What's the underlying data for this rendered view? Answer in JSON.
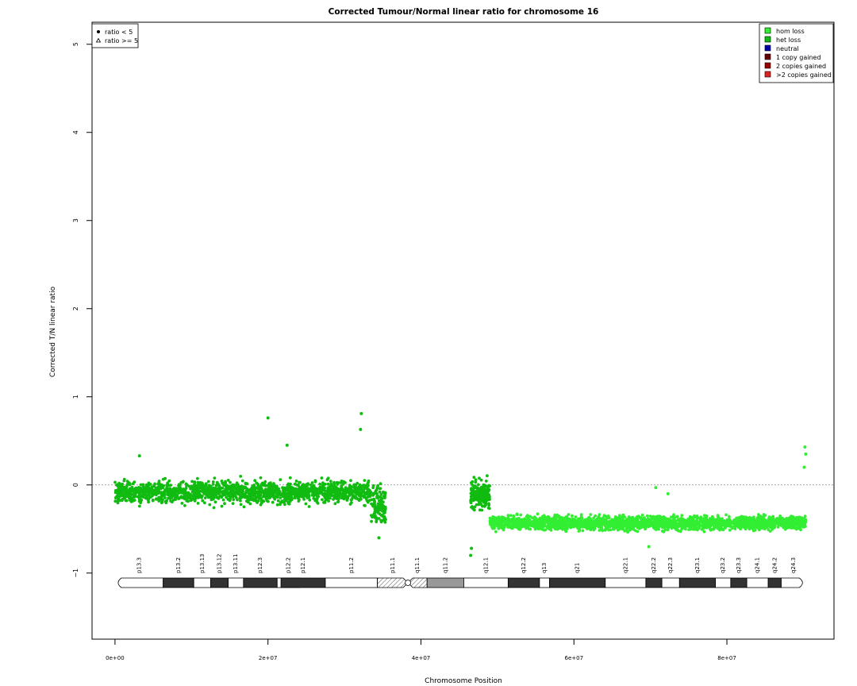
{
  "chart_data": {
    "type": "scatter",
    "title": "Corrected Tumour/Normal linear ratio for chromosome  16",
    "xlabel": "Chromosome Position",
    "ylabel": "Corrected T/N linear ratio",
    "xlim": [
      -3000000,
      94000000
    ],
    "ylim": [
      -1.75,
      5.25
    ],
    "x_ticks": [
      0,
      20000000,
      40000000,
      60000000,
      80000000
    ],
    "x_tick_labels": [
      "0e+00",
      "2e+07",
      "4e+07",
      "6e+07",
      "8e+07"
    ],
    "y_ticks": [
      -1,
      0,
      1,
      2,
      3,
      4,
      5
    ],
    "y_tick_labels": [
      "−1",
      "0",
      "1",
      "2",
      "3",
      "4",
      "5"
    ],
    "reference_line": {
      "y": 0,
      "style": "dotted",
      "color": "#888888"
    },
    "grid": false,
    "shape_legend": {
      "position": "top-left",
      "items": [
        {
          "symbol": "filled-circle",
          "label": "ratio < 5"
        },
        {
          "symbol": "open-triangle",
          "label": "ratio >= 5"
        }
      ]
    },
    "color_legend": {
      "position": "top-right",
      "items": [
        {
          "label": "hom loss",
          "color": "#33ee33"
        },
        {
          "label": "het loss",
          "color": "#11bb11"
        },
        {
          "label": "neutral",
          "color": "#0000aa"
        },
        {
          "label": "1 copy gained",
          "color": "#660000"
        },
        {
          "label": "2 copies gained",
          "color": "#990000"
        },
        {
          "label": ">2 copies gained",
          "color": "#dd2222"
        }
      ]
    },
    "segments": [
      {
        "x_start": 0,
        "x_end": 33500000,
        "mean": -0.08,
        "sd": 0.11,
        "color": "#11bb11",
        "n": 1650
      },
      {
        "x_start": 33500000,
        "x_end": 35400000,
        "mean": -0.22,
        "sd": 0.2,
        "color": "#11bb11",
        "n": 120
      },
      {
        "x_start": 46500000,
        "x_end": 49000000,
        "mean": -0.1,
        "sd": 0.15,
        "color": "#11bb11",
        "n": 200
      },
      {
        "x_start": 49000000,
        "x_end": 90300000,
        "mean": -0.43,
        "sd": 0.07,
        "color": "#33ee33",
        "n": 2600
      }
    ],
    "notable_points": [
      {
        "x": 20000000,
        "y": 0.76,
        "color": "#11bb11"
      },
      {
        "x": 32200000,
        "y": 0.81,
        "color": "#11bb11"
      },
      {
        "x": 32100000,
        "y": 0.63,
        "color": "#11bb11"
      },
      {
        "x": 22500000,
        "y": 0.45,
        "color": "#11bb11"
      },
      {
        "x": 3200000,
        "y": 0.33,
        "color": "#11bb11"
      },
      {
        "x": 34500000,
        "y": -0.6,
        "color": "#11bb11"
      },
      {
        "x": 46500000,
        "y": -0.8,
        "color": "#11bb11"
      },
      {
        "x": 46600000,
        "y": -0.72,
        "color": "#11bb11"
      },
      {
        "x": 90200000,
        "y": 0.43,
        "color": "#33ee33"
      },
      {
        "x": 90300000,
        "y": 0.35,
        "color": "#33ee33"
      },
      {
        "x": 90100000,
        "y": 0.2,
        "color": "#33ee33"
      },
      {
        "x": 70700000,
        "y": -0.03,
        "color": "#33ee33"
      },
      {
        "x": 72300000,
        "y": -0.1,
        "color": "#33ee33"
      },
      {
        "x": 69800000,
        "y": -0.7,
        "color": "#33ee33"
      }
    ],
    "ideogram": {
      "chromosome": "16",
      "centromere": 38300000,
      "end": 90300000,
      "bands": [
        {
          "name": "p13.3",
          "start": 0,
          "end": 6300000,
          "stain": "gneg"
        },
        {
          "name": "p13.2",
          "start": 6300000,
          "end": 10300000,
          "stain": "gpos50"
        },
        {
          "name": "p13.13",
          "start": 10300000,
          "end": 12500000,
          "stain": "gneg"
        },
        {
          "name": "p13.12",
          "start": 12500000,
          "end": 14800000,
          "stain": "gpos50"
        },
        {
          "name": "p13.11",
          "start": 14800000,
          "end": 16800000,
          "stain": "gneg"
        },
        {
          "name": "p12.3",
          "start": 16800000,
          "end": 21200000,
          "stain": "gpos50"
        },
        {
          "name": "p12.2",
          "start": 21200000,
          "end": 24200000,
          "stain": "gneg"
        },
        {
          "name": "p12.1",
          "start": 21700000,
          "end": 27500000,
          "stain": "gpos50"
        },
        {
          "name": "p11.2",
          "start": 27500000,
          "end": 34300000,
          "stain": "gneg"
        },
        {
          "name": "p11.1",
          "start": 34300000,
          "end": 38300000,
          "stain": "acen"
        },
        {
          "name": "q11.1",
          "start": 38300000,
          "end": 40800000,
          "stain": "acen"
        },
        {
          "name": "q11.2",
          "start": 40800000,
          "end": 45600000,
          "stain": "gvar"
        },
        {
          "name": "q12.1",
          "start": 45600000,
          "end": 51400000,
          "stain": "gneg"
        },
        {
          "name": "q12.2",
          "start": 51400000,
          "end": 55500000,
          "stain": "gpos50"
        },
        {
          "name": "q13",
          "start": 55500000,
          "end": 56800000,
          "stain": "gneg"
        },
        {
          "name": "q21",
          "start": 56800000,
          "end": 64100000,
          "stain": "gpos50"
        },
        {
          "name": "q22.1",
          "start": 64100000,
          "end": 69400000,
          "stain": "gneg"
        },
        {
          "name": "q22.2",
          "start": 69400000,
          "end": 71500000,
          "stain": "gpos50"
        },
        {
          "name": "q22.3",
          "start": 71500000,
          "end": 73800000,
          "stain": "gneg"
        },
        {
          "name": "q23.1",
          "start": 73800000,
          "end": 78500000,
          "stain": "gpos50"
        },
        {
          "name": "q23.2",
          "start": 78500000,
          "end": 80500000,
          "stain": "gneg"
        },
        {
          "name": "q23.3",
          "start": 80500000,
          "end": 82600000,
          "stain": "gpos50"
        },
        {
          "name": "q24.1",
          "start": 82600000,
          "end": 85400000,
          "stain": "gneg"
        },
        {
          "name": "q24.2",
          "start": 85400000,
          "end": 87100000,
          "stain": "gpos50"
        },
        {
          "name": "q24.3",
          "start": 87100000,
          "end": 90300000,
          "stain": "gneg"
        }
      ]
    }
  }
}
